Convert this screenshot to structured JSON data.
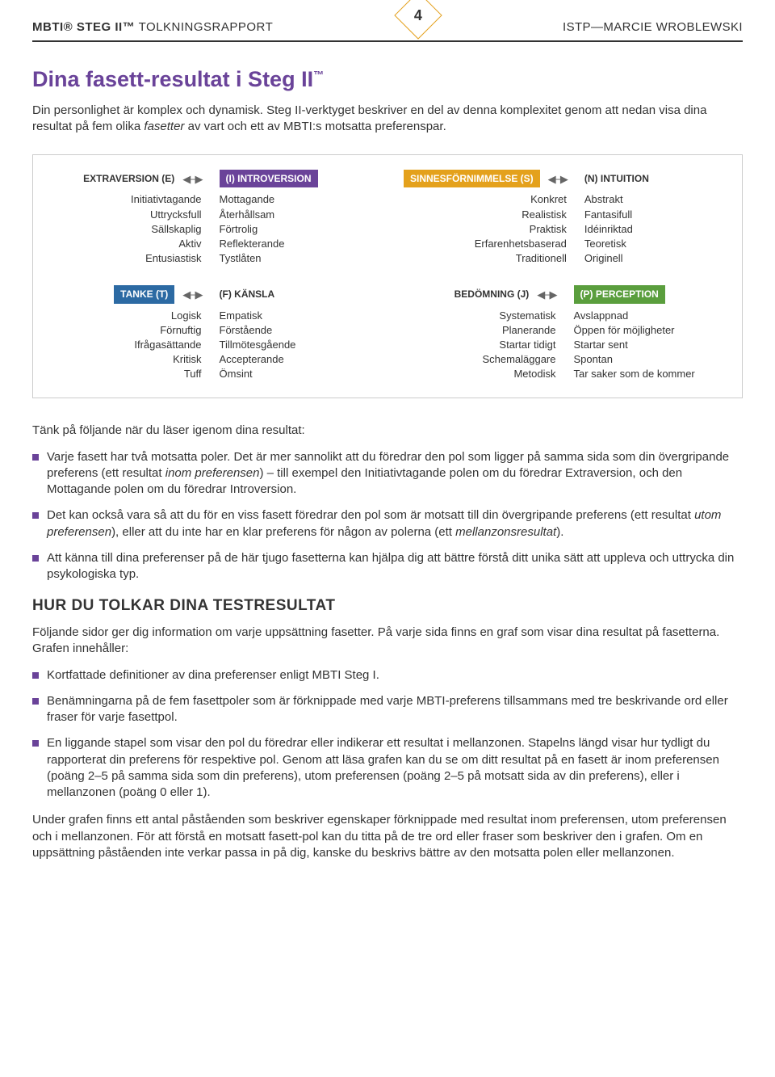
{
  "colors": {
    "purple": "#6a4399",
    "amber": "#e4a11c",
    "blue": "#2c6aa3",
    "green": "#5a9e3d",
    "text": "#333333",
    "border": "#cccccc"
  },
  "header": {
    "left_bold": "MBTI® STEG II™",
    "left_light": " TOLKNINGSRAPPORT",
    "page_number": "4",
    "right": "ISTP—MARCIE WROBLEWSKI"
  },
  "title": "Dina fasett-resultat i Steg II",
  "intro": "Din personlighet är komplex och dynamisk. Steg II-verktyget beskriver en del av denna komplexitet genom att nedan visa dina resultat på fem olika <em>fasetter</em> av vart och ett av MBTI:s motsatta preferenspar.",
  "facet_pairs": [
    {
      "color": "purple",
      "left_label": "EXTRAVERSION (E)",
      "left_highlight": false,
      "right_label": "(I) INTROVERSION",
      "right_highlight": true,
      "left_items": [
        "Initiativtagande",
        "Uttrycksfull",
        "Sällskaplig",
        "Aktiv",
        "Entusiastisk"
      ],
      "right_items": [
        "Mottagande",
        "Återhållsam",
        "Förtrolig",
        "Reflekterande",
        "Tystlåten"
      ]
    },
    {
      "color": "amber",
      "left_label": "SINNESFÖRNIMMELSE (S)",
      "left_highlight": true,
      "right_label": "(N) INTUITION",
      "right_highlight": false,
      "left_items": [
        "Konkret",
        "Realistisk",
        "Praktisk",
        "Erfarenhetsbaserad",
        "Traditionell"
      ],
      "right_items": [
        "Abstrakt",
        "Fantasifull",
        "Idéinriktad",
        "Teoretisk",
        "Originell"
      ]
    },
    {
      "color": "blue",
      "left_label": "TANKE (T)",
      "left_highlight": true,
      "right_label": "(F) KÄNSLA",
      "right_highlight": false,
      "left_items": [
        "Logisk",
        "Förnuftig",
        "Ifrågasättande",
        "Kritisk",
        "Tuff"
      ],
      "right_items": [
        "Empatisk",
        "Förstående",
        "Tillmötesgående",
        "Accepterande",
        "Ömsint"
      ]
    },
    {
      "color": "green",
      "left_label": "BEDÖMNING (J)",
      "left_highlight": false,
      "right_label": "(P) PERCEPTION",
      "right_highlight": true,
      "left_items": [
        "Systematisk",
        "Planerande",
        "Startar tidigt",
        "Schemaläggare",
        "Metodisk"
      ],
      "right_items": [
        "Avslappnad",
        "Öppen för möjligheter",
        "Startar sent",
        "Spontan",
        "Tar saker som de kommer"
      ]
    }
  ],
  "lead_in": "Tänk på följande när du läser igenom dina resultat:",
  "bullets1": [
    "Varje fasett har två motsatta poler. Det är mer sannolikt att du föredrar den pol som ligger på samma sida som din övergripande preferens (ett resultat <em>inom preferensen</em>) – till exempel den Initiativtagande polen om du föredrar Extraversion, och den Mottagande polen om du föredrar Introversion.",
    "Det kan också vara så att du för en viss fasett föredrar den pol som är motsatt till din övergripande preferens (ett resultat <em>utom preferensen</em>), eller att du inte har en klar preferens för någon av polerna (ett <em>mellanzonsresultat</em>).",
    "Att känna till dina preferenser på de här tjugo fasetterna kan hjälpa dig att bättre förstå ditt unika sätt att uppleva och uttrycka din psykologiska typ."
  ],
  "section_heading": "HUR DU TOLKAR DINA TESTRESULTAT",
  "para2": "Följande sidor ger dig information om varje uppsättning fasetter. På varje sida finns en graf som visar dina resultat på fasetterna. Grafen innehåller:",
  "bullets2": [
    "Kortfattade definitioner av dina preferenser enligt MBTI Steg I.",
    "Benämningarna på de fem fasettpoler som är förknippade med varje MBTI-preferens tillsammans med tre beskrivande ord eller fraser för varje fasettpol.",
    "En liggande stapel som visar den pol du föredrar eller indikerar ett resultat i mellanzonen. Stapelns längd visar hur tydligt du rapporterat din preferens för respektive pol. Genom att läsa grafen kan du se om ditt resultat på en fasett är inom preferensen (poäng 2–5 på samma sida som din preferens), utom preferensen (poäng 2–5 på motsatt sida av din preferens), eller i mellanzonen (poäng 0 eller 1)."
  ],
  "closing": "Under grafen finns ett antal påståenden som beskriver egenskaper förknippade med resultat inom preferensen, utom preferensen och i mellanzonen. För att förstå en motsatt fasett-pol kan du titta på de tre ord eller fraser som beskriver den i grafen. Om en uppsättning påståenden inte verkar passa in på dig, kanske du beskrivs bättre av den motsatta polen eller mellanzonen."
}
